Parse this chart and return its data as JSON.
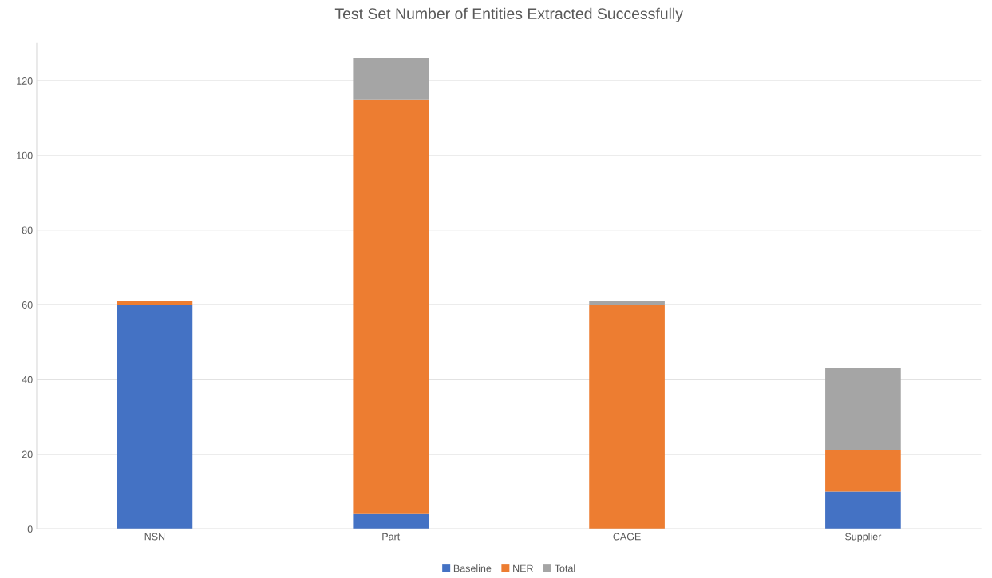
{
  "chart_data": {
    "type": "bar",
    "title": "Test Set Number of Entities Extracted Successfully",
    "stacked": true,
    "categories": [
      "NSN",
      "Part",
      "CAGE",
      "Supplier"
    ],
    "series": [
      {
        "name": "Baseline",
        "color": "#4472c4",
        "values": [
          60,
          4,
          0,
          10
        ]
      },
      {
        "name": "NER",
        "color": "#ed7d31",
        "values": [
          1,
          111,
          60,
          11
        ]
      },
      {
        "name": "Total",
        "color": "#a5a5a5",
        "values": [
          0,
          11,
          1,
          22
        ]
      }
    ],
    "ylim": [
      0,
      130
    ],
    "yticks": [
      0,
      20,
      40,
      60,
      80,
      100,
      120
    ],
    "grid": "y",
    "legend": "bottom"
  }
}
